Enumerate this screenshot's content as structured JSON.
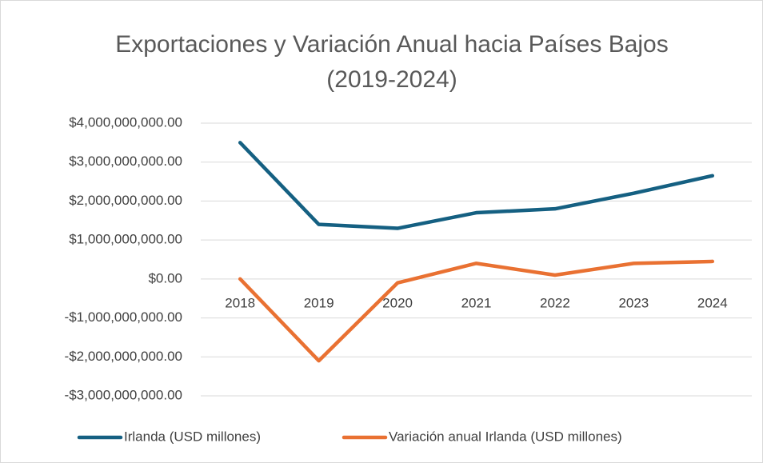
{
  "chart_data": {
    "type": "line",
    "title": "Exportaciones y Variación Anual hacia Países Bajos (2019-2024)",
    "categories": [
      "2018",
      "2019",
      "2020",
      "2021",
      "2022",
      "2023",
      "2024"
    ],
    "series": [
      {
        "name": "Irlanda (USD millones)",
        "color": "#156082",
        "values": [
          3500000000,
          1400000000,
          1300000000,
          1700000000,
          1800000000,
          2200000000,
          2650000000
        ]
      },
      {
        "name": "Variación anual Irlanda (USD millones)",
        "color": "#e97132",
        "values": [
          0,
          -2100000000,
          -100000000,
          400000000,
          100000000,
          400000000,
          450000000
        ]
      }
    ],
    "ylim": [
      -3000000000,
      4000000000
    ],
    "yticks": [
      {
        "value": -3000000000,
        "label": "-$3,000,000,000.00"
      },
      {
        "value": -2000000000,
        "label": "-$2,000,000,000.00"
      },
      {
        "value": -1000000000,
        "label": "-$1,000,000,000.00"
      },
      {
        "value": 0,
        "label": "$0.00"
      },
      {
        "value": 1000000000,
        "label": "$1,000,000,000.00"
      },
      {
        "value": 2000000000,
        "label": "$2,000,000,000.00"
      },
      {
        "value": 3000000000,
        "label": "$3,000,000,000.00"
      },
      {
        "value": 4000000000,
        "label": "$4,000,000,000.00"
      }
    ],
    "grid": true,
    "legend": "bottom"
  }
}
